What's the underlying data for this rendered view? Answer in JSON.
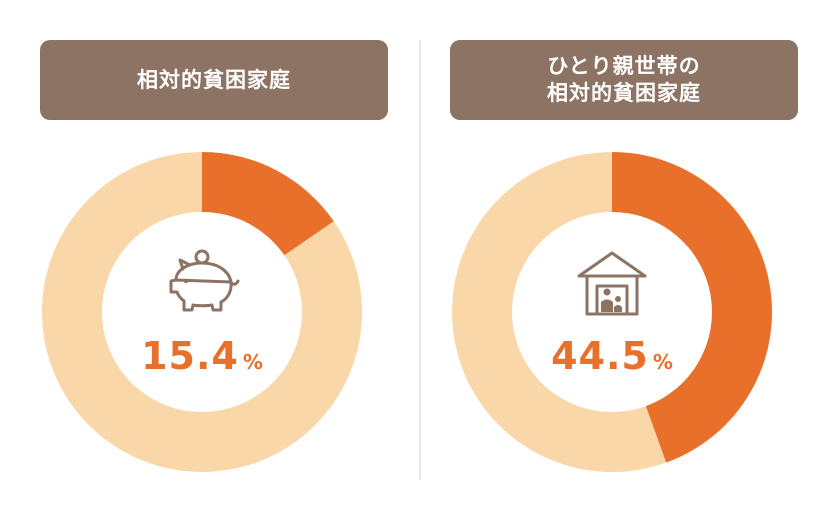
{
  "chart_data": [
    {
      "type": "pie",
      "donut": true,
      "title_lines": [
        "相対的貧困家庭"
      ],
      "value": 15.4,
      "unit": "%",
      "display_number": "15.4",
      "icon": "piggy-bank-icon"
    },
    {
      "type": "pie",
      "donut": true,
      "title_lines": [
        "ひとり親世帯の",
        "相対的貧困家庭"
      ],
      "value": 44.5,
      "unit": "%",
      "display_number": "44.5",
      "icon": "house-family-icon"
    }
  ],
  "colors": {
    "highlight": "#e8702b",
    "remainder": "#fad7a8",
    "header": "#8c7363",
    "divider": "#e3e6ec"
  }
}
